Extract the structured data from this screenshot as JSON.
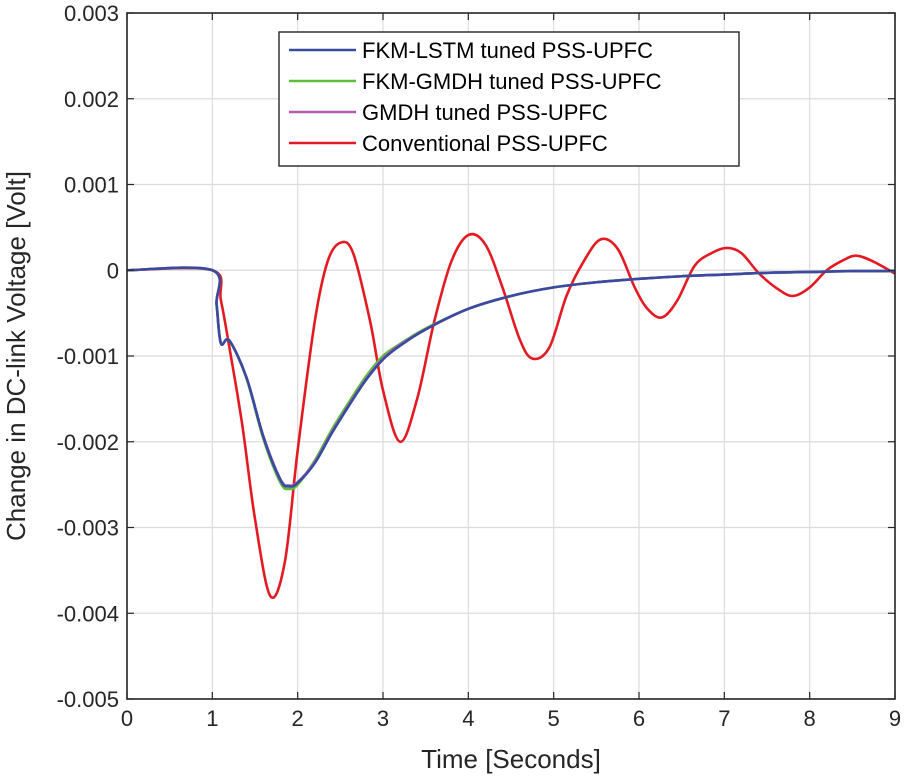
{
  "chart_data": {
    "type": "line",
    "title": "",
    "xlabel": "Time [Seconds]",
    "ylabel": "Change in DC-link Voltage [Volt]",
    "xlim": [
      0,
      9
    ],
    "ylim": [
      -0.005,
      0.003
    ],
    "xticks": [
      0,
      1,
      2,
      3,
      4,
      5,
      6,
      7,
      8,
      9
    ],
    "yticks": [
      -0.005,
      -0.004,
      -0.003,
      -0.002,
      -0.001,
      0,
      0.001,
      0.002,
      0.003
    ],
    "xtick_labels": [
      "0",
      "1",
      "2",
      "3",
      "4",
      "5",
      "6",
      "7",
      "8",
      "9"
    ],
    "ytick_labels": [
      "-0.005",
      "-0.004",
      "-0.003",
      "-0.002",
      "-0.001",
      "0",
      "0.001",
      "0.002",
      "0.003"
    ],
    "grid": true,
    "legend_position": "top-center",
    "series": [
      {
        "name": "FKM-LSTM tuned PSS-UPFC",
        "color": "#3a4aa0",
        "x": [
          0,
          1.0,
          1.05,
          1.1,
          1.2,
          1.4,
          1.6,
          1.8,
          1.9,
          2.0,
          2.2,
          2.4,
          2.6,
          2.8,
          3.0,
          3.2,
          3.5,
          4.0,
          4.5,
          5.0,
          5.5,
          6.0,
          6.5,
          7.0,
          7.5,
          8.0,
          8.5,
          9.0
        ],
        "y": [
          0,
          0,
          -0.0004,
          -0.00085,
          -0.00082,
          -0.00125,
          -0.00195,
          -0.00245,
          -0.00252,
          -0.00248,
          -0.00225,
          -0.0019,
          -0.00158,
          -0.00128,
          -0.00104,
          -0.00088,
          -0.00069,
          -0.00045,
          -0.0003,
          -0.0002,
          -0.00014,
          -0.0001,
          -7e-05,
          -5e-05,
          -3e-05,
          -2e-05,
          -1e-05,
          -1e-05
        ]
      },
      {
        "name": "FKM-GMDH tuned PSS-UPFC",
        "color": "#5cbf3a",
        "x": [
          0,
          1.0,
          1.05,
          1.1,
          1.2,
          1.4,
          1.6,
          1.8,
          1.9,
          2.0,
          2.2,
          2.4,
          2.6,
          2.8,
          3.0,
          3.2,
          3.5,
          4.0,
          4.5,
          5.0,
          5.5,
          6.0,
          6.5,
          7.0,
          7.5,
          8.0,
          8.5,
          9.0
        ],
        "y": [
          0,
          0,
          -0.0004,
          -0.00085,
          -0.00082,
          -0.00126,
          -0.00197,
          -0.00248,
          -0.00255,
          -0.0025,
          -0.00222,
          -0.00186,
          -0.00154,
          -0.00124,
          -0.001,
          -0.00086,
          -0.00068,
          -0.00045,
          -0.0003,
          -0.0002,
          -0.00014,
          -0.0001,
          -7e-05,
          -5e-05,
          -3e-05,
          -2e-05,
          -1e-05,
          -1e-05
        ]
      },
      {
        "name": "GMDH tuned PSS-UPFC",
        "color": "#b65bb4",
        "x": [
          0,
          1.0,
          1.05,
          1.1,
          1.2,
          1.4,
          1.6,
          1.8,
          1.9,
          2.0,
          2.2,
          2.4,
          2.6,
          2.8,
          3.0,
          3.2,
          3.5,
          4.0,
          4.5,
          5.0,
          5.5,
          6.0,
          6.5,
          7.0,
          7.5,
          8.0,
          8.5,
          9.0
        ],
        "y": [
          0,
          0,
          -0.0004,
          -0.00085,
          -0.00082,
          -0.00125,
          -0.00194,
          -0.00244,
          -0.00251,
          -0.00247,
          -0.00224,
          -0.00189,
          -0.00157,
          -0.00127,
          -0.00103,
          -0.00087,
          -0.00069,
          -0.00045,
          -0.0003,
          -0.0002,
          -0.00014,
          -0.0001,
          -7e-05,
          -5e-05,
          -3e-05,
          -2e-05,
          -1e-05,
          -1e-05
        ]
      },
      {
        "name": "Conventional PSS-UPFC",
        "color": "#e41a23",
        "x": [
          0,
          1.0,
          1.1,
          1.2,
          1.35,
          1.5,
          1.68,
          1.85,
          2.0,
          2.2,
          2.35,
          2.5,
          2.65,
          2.85,
          3.0,
          3.2,
          3.4,
          3.6,
          3.8,
          4.0,
          4.2,
          4.4,
          4.6,
          4.75,
          4.95,
          5.15,
          5.35,
          5.55,
          5.75,
          5.95,
          6.1,
          6.27,
          6.45,
          6.65,
          6.85,
          7.03,
          7.2,
          7.4,
          7.6,
          7.8,
          8.0,
          8.2,
          8.4,
          8.55,
          8.75,
          9.0
        ],
        "y": [
          0,
          0,
          -0.00035,
          -0.0009,
          -0.0018,
          -0.0029,
          -0.0038,
          -0.0034,
          -0.0021,
          -0.0006,
          0.0001,
          0.00032,
          0.0002,
          -0.0006,
          -0.0014,
          -0.002,
          -0.0015,
          -0.0006,
          0.0001,
          0.00041,
          0.0003,
          -0.0002,
          -0.0008,
          -0.00103,
          -0.0009,
          -0.0003,
          0.0001,
          0.00036,
          0.00025,
          -0.0002,
          -0.00045,
          -0.00055,
          -0.00035,
          5e-05,
          0.0002,
          0.00026,
          0.0002,
          -3e-05,
          -0.0002,
          -0.0003,
          -0.0002,
          0.0,
          0.00012,
          0.00017,
          0.0001,
          -4e-05
        ]
      }
    ]
  }
}
